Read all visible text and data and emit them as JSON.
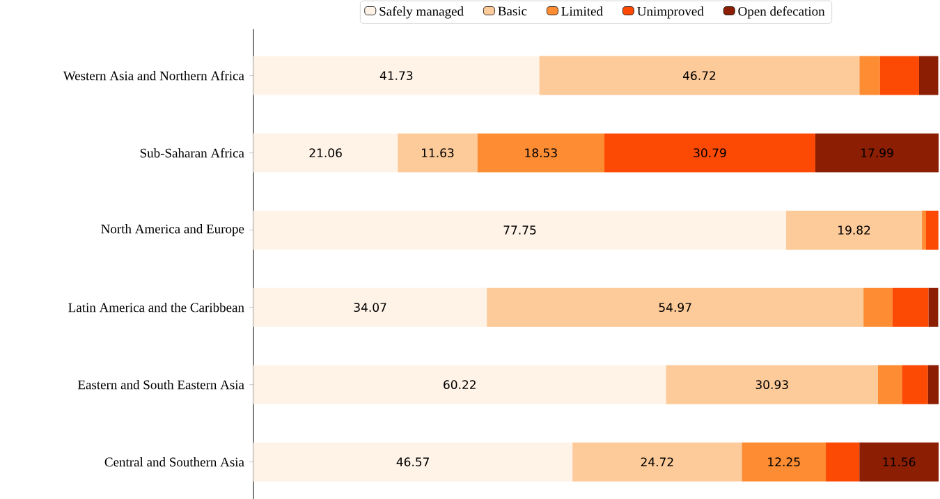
{
  "chart_data": {
    "type": "bar",
    "orientation": "horizontal",
    "stacked": true,
    "legend": "top",
    "tick_labels": "y",
    "xlim": [
      0,
      100
    ],
    "categories": [
      "Western Asia and Northern Africa",
      "Sub-Saharan Africa",
      "North America and Europe",
      "Latin America and the Caribbean",
      "Eastern and South Eastern Asia",
      "Central and Southern Asia"
    ],
    "series": [
      {
        "name": "Safely managed",
        "color": "#fff3e7",
        "values": [
          41.73,
          21.06,
          77.75,
          34.07,
          60.22,
          46.57
        ],
        "value_labels": [
          "41.73",
          "21.06",
          "77.75",
          "34.07",
          "60.22",
          "46.57"
        ]
      },
      {
        "name": "Basic",
        "color": "#fdca99",
        "values": [
          46.72,
          11.63,
          19.82,
          54.97,
          30.93,
          24.72
        ],
        "value_labels": [
          "46.72",
          "11.63",
          "19.82",
          "54.97",
          "30.93",
          "24.72"
        ]
      },
      {
        "name": "Limited",
        "color": "#fd8c33",
        "values": [
          3.0,
          18.53,
          0.6,
          4.2,
          3.5,
          12.25
        ],
        "value_labels": [
          null,
          "18.53",
          null,
          null,
          null,
          "12.25"
        ]
      },
      {
        "name": "Unimproved",
        "color": "#fc4a04",
        "values": [
          5.7,
          30.79,
          1.8,
          5.3,
          3.8,
          4.9
        ],
        "value_labels": [
          null,
          "30.79",
          null,
          null,
          null,
          null
        ]
      },
      {
        "name": "Open defecation",
        "color": "#8b1e03",
        "values": [
          2.8,
          17.99,
          null,
          1.4,
          1.6,
          11.56
        ],
        "value_labels": [
          null,
          "17.99",
          null,
          null,
          null,
          "11.56"
        ]
      }
    ]
  }
}
